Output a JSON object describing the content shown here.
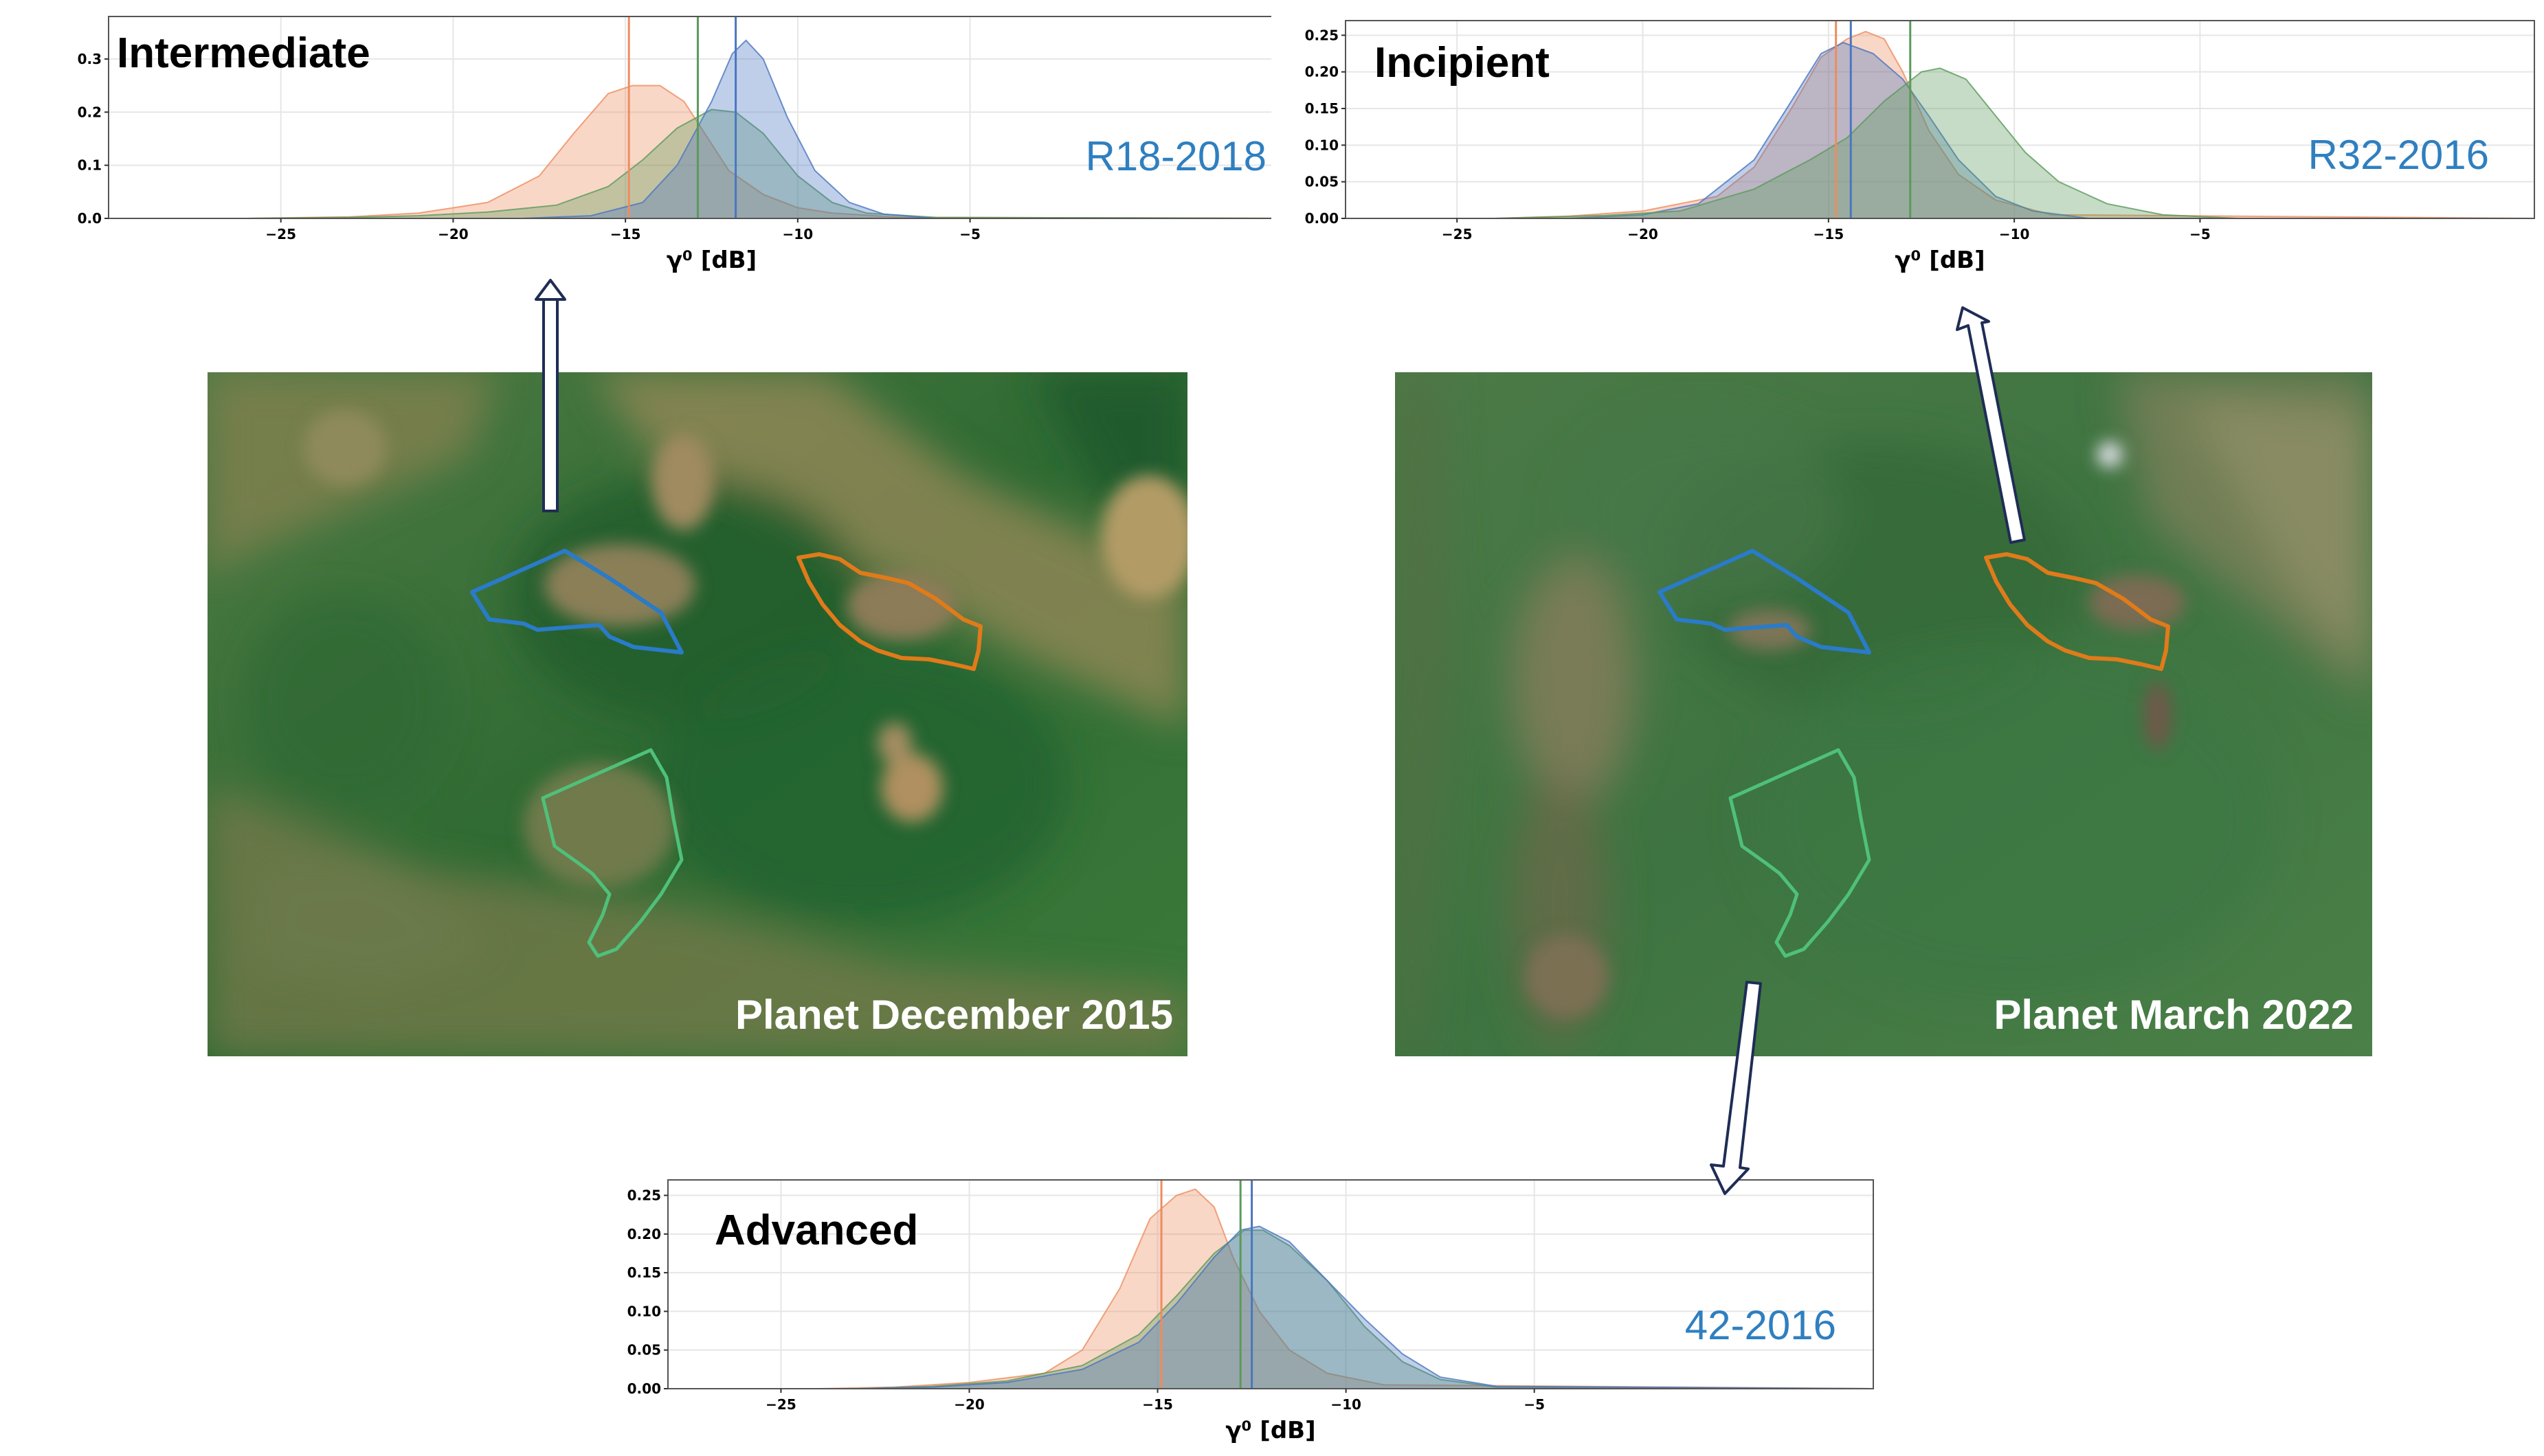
{
  "charts": [
    {
      "id": "intermediate",
      "title": "Intermediate",
      "code": "R18-2018",
      "xlabel": "γ⁰ [dB]",
      "xticks": [
        -25,
        -20,
        -15,
        -10,
        -5
      ],
      "yticks": [
        "0.0",
        "0.1",
        "0.2",
        "0.3"
      ],
      "chart_data": {
        "type": "area",
        "xlim": [
          -30,
          5
        ],
        "ylim": [
          0,
          0.38
        ],
        "grid": true,
        "series": [
          {
            "color": "#ee8c5e",
            "vline": -14.9,
            "points": [
              [
                -30,
                0
              ],
              [
                -26,
                0
              ],
              [
                -23,
                0.003
              ],
              [
                -21,
                0.01
              ],
              [
                -19,
                0.03
              ],
              [
                -17.5,
                0.08
              ],
              [
                -16.5,
                0.16
              ],
              [
                -15.5,
                0.235
              ],
              [
                -14.8,
                0.25
              ],
              [
                -14,
                0.25
              ],
              [
                -13.3,
                0.22
              ],
              [
                -12.6,
                0.15
              ],
              [
                -12,
                0.09
              ],
              [
                -11,
                0.045
              ],
              [
                -10,
                0.02
              ],
              [
                -9,
                0.01
              ],
              [
                -7,
                0.002
              ],
              [
                5,
                0
              ]
            ]
          },
          {
            "color": "#5b9a5b",
            "vline": -12.9,
            "points": [
              [
                -30,
                0
              ],
              [
                -26,
                0
              ],
              [
                -23,
                0.002
              ],
              [
                -21,
                0.005
              ],
              [
                -19,
                0.012
              ],
              [
                -17,
                0.025
              ],
              [
                -15.5,
                0.06
              ],
              [
                -14.5,
                0.11
              ],
              [
                -13.5,
                0.17
              ],
              [
                -12.5,
                0.205
              ],
              [
                -11.8,
                0.2
              ],
              [
                -11,
                0.16
              ],
              [
                -10,
                0.08
              ],
              [
                -9,
                0.03
              ],
              [
                -8,
                0.01
              ],
              [
                -6,
                0.002
              ],
              [
                5,
                0
              ]
            ]
          },
          {
            "color": "#4a76c0",
            "vline": -11.8,
            "points": [
              [
                -30,
                0
              ],
              [
                -18,
                0
              ],
              [
                -16,
                0.005
              ],
              [
                -14.5,
                0.03
              ],
              [
                -13.5,
                0.1
              ],
              [
                -12.5,
                0.22
              ],
              [
                -11.9,
                0.31
              ],
              [
                -11.5,
                0.335
              ],
              [
                -11,
                0.3
              ],
              [
                -10.3,
                0.19
              ],
              [
                -9.5,
                0.09
              ],
              [
                -8.5,
                0.03
              ],
              [
                -7.5,
                0.008
              ],
              [
                -6,
                0
              ],
              [
                5,
                0
              ]
            ]
          }
        ]
      }
    },
    {
      "id": "incipient",
      "title": "Incipient",
      "code": "R32-2016",
      "xlabel": "γ⁰ [dB]",
      "xticks": [
        -25,
        -20,
        -15,
        -10,
        -5
      ],
      "yticks": [
        "0.00",
        "0.05",
        "0.10",
        "0.15",
        "0.20",
        "0.25"
      ],
      "chart_data": {
        "type": "area",
        "xlim": [
          -28,
          4
        ],
        "ylim": [
          0,
          0.27
        ],
        "grid": true,
        "series": [
          {
            "color": "#ee8c5e",
            "vline": -14.8,
            "points": [
              [
                -28,
                0
              ],
              [
                -24,
                0
              ],
              [
                -22,
                0.003
              ],
              [
                -20,
                0.01
              ],
              [
                -18,
                0.03
              ],
              [
                -17,
                0.07
              ],
              [
                -16,
                0.15
              ],
              [
                -15.2,
                0.22
              ],
              [
                -14.5,
                0.245
              ],
              [
                -14,
                0.255
              ],
              [
                -13.5,
                0.245
              ],
              [
                -13,
                0.2
              ],
              [
                -12.3,
                0.12
              ],
              [
                -11.5,
                0.06
              ],
              [
                -10.5,
                0.025
              ],
              [
                -9,
                0.005
              ],
              [
                4,
                0
              ]
            ]
          },
          {
            "color": "#4a76c0",
            "vline": -14.4,
            "points": [
              [
                -28,
                0
              ],
              [
                -22,
                0
              ],
              [
                -20,
                0.005
              ],
              [
                -18.5,
                0.02
              ],
              [
                -17,
                0.08
              ],
              [
                -16,
                0.16
              ],
              [
                -15.2,
                0.225
              ],
              [
                -14.6,
                0.24
              ],
              [
                -13.8,
                0.225
              ],
              [
                -13,
                0.19
              ],
              [
                -12.3,
                0.14
              ],
              [
                -11.5,
                0.08
              ],
              [
                -10.5,
                0.03
              ],
              [
                -9.5,
                0.01
              ],
              [
                -8,
                0
              ],
              [
                4,
                0
              ]
            ]
          },
          {
            "color": "#5b9a5b",
            "vline": -12.8,
            "points": [
              [
                -28,
                0
              ],
              [
                -24,
                0
              ],
              [
                -21,
                0.004
              ],
              [
                -19,
                0.01
              ],
              [
                -17,
                0.04
              ],
              [
                -15.5,
                0.08
              ],
              [
                -14.5,
                0.11
              ],
              [
                -13.5,
                0.16
              ],
              [
                -12.5,
                0.2
              ],
              [
                -12,
                0.205
              ],
              [
                -11.3,
                0.19
              ],
              [
                -10.5,
                0.14
              ],
              [
                -9.7,
                0.09
              ],
              [
                -8.8,
                0.05
              ],
              [
                -7.5,
                0.02
              ],
              [
                -6,
                0.005
              ],
              [
                -4,
                0
              ],
              [
                4,
                0
              ]
            ]
          }
        ]
      }
    },
    {
      "id": "advanced",
      "title": "Advanced",
      "code": "42-2016",
      "xlabel": "γ⁰ [dB]",
      "xticks": [
        -25,
        -20,
        -15,
        -10,
        -5
      ],
      "yticks": [
        "0.00",
        "0.05",
        "0.10",
        "0.15",
        "0.20",
        "0.25"
      ],
      "chart_data": {
        "type": "area",
        "xlim": [
          -28,
          4
        ],
        "ylim": [
          0,
          0.27
        ],
        "grid": true,
        "series": [
          {
            "color": "#ee8c5e",
            "vline": -14.9,
            "points": [
              [
                -28,
                0
              ],
              [
                -24,
                0
              ],
              [
                -22,
                0.002
              ],
              [
                -20,
                0.008
              ],
              [
                -18,
                0.02
              ],
              [
                -17,
                0.05
              ],
              [
                -16,
                0.13
              ],
              [
                -15.2,
                0.22
              ],
              [
                -14.5,
                0.25
              ],
              [
                -14,
                0.258
              ],
              [
                -13.5,
                0.235
              ],
              [
                -13,
                0.17
              ],
              [
                -12.3,
                0.1
              ],
              [
                -11.5,
                0.05
              ],
              [
                -10.5,
                0.02
              ],
              [
                -9,
                0.005
              ],
              [
                4,
                0
              ]
            ]
          },
          {
            "color": "#5b9a5b",
            "vline": -12.8,
            "points": [
              [
                -28,
                0
              ],
              [
                -23,
                0
              ],
              [
                -21,
                0.003
              ],
              [
                -19,
                0.01
              ],
              [
                -17,
                0.03
              ],
              [
                -15.5,
                0.07
              ],
              [
                -14.5,
                0.12
              ],
              [
                -13.5,
                0.175
              ],
              [
                -12.7,
                0.205
              ],
              [
                -12.2,
                0.205
              ],
              [
                -11.5,
                0.185
              ],
              [
                -10.5,
                0.14
              ],
              [
                -9.5,
                0.08
              ],
              [
                -8.5,
                0.035
              ],
              [
                -7.5,
                0.012
              ],
              [
                -6,
                0.002
              ],
              [
                4,
                0
              ]
            ]
          },
          {
            "color": "#4a76c0",
            "vline": -12.5,
            "points": [
              [
                -28,
                0
              ],
              [
                -23,
                0
              ],
              [
                -21,
                0.002
              ],
              [
                -19,
                0.008
              ],
              [
                -17,
                0.025
              ],
              [
                -15.5,
                0.06
              ],
              [
                -14.5,
                0.11
              ],
              [
                -13.5,
                0.17
              ],
              [
                -12.8,
                0.205
              ],
              [
                -12.3,
                0.21
              ],
              [
                -11.5,
                0.19
              ],
              [
                -10.5,
                0.14
              ],
              [
                -9.5,
                0.09
              ],
              [
                -8.5,
                0.045
              ],
              [
                -7.5,
                0.015
              ],
              [
                -6,
                0.003
              ],
              [
                4,
                0
              ]
            ]
          }
        ]
      }
    }
  ],
  "images": [
    {
      "id": "dec2015",
      "caption": "Planet December 2015"
    },
    {
      "id": "mar2022",
      "caption": "Planet March 2022"
    }
  ],
  "colors": {
    "blue": "#2a7bc8",
    "orange": "#e07b1a",
    "green": "#4fc07a",
    "code": "#2f7fc0"
  }
}
